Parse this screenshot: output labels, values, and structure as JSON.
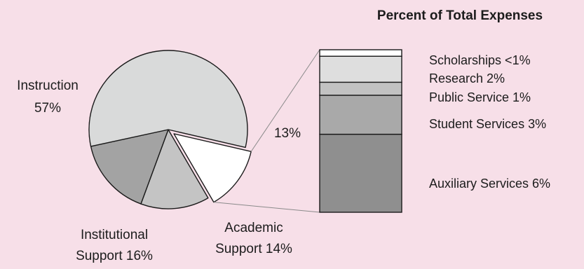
{
  "chart_data": {
    "type": "pie",
    "title": "Percent of Total Expenses",
    "slices": [
      {
        "label_line1": "Instruction",
        "label_line2": "57%",
        "value": 57,
        "color": "#d9dada"
      },
      {
        "label_line1": "Institutional",
        "label_line2": "Support 16%",
        "value": 16,
        "color": "#a3a3a3"
      },
      {
        "label_line1": "Academic",
        "label_line2": "Support 14%",
        "value": 14,
        "color": "#c4c4c4"
      },
      {
        "label_line1": "13%",
        "label_line2": "",
        "value": 13,
        "color": "#ffffff",
        "exploded": true
      }
    ],
    "breakdown": {
      "type": "stacked-bar",
      "segments": [
        {
          "label": "Auxiliary Services 6%",
          "value": 6,
          "color": "#8f8f8f"
        },
        {
          "label": "Student Services 3%",
          "value": 3,
          "color": "#a9a9a9"
        },
        {
          "label": "Public Service 1%",
          "value": 1,
          "color": "#c2c2c2"
        },
        {
          "label": "Research 2%",
          "value": 2,
          "color": "#dedede"
        },
        {
          "label": "Scholarships <1%",
          "value": 0.5,
          "color": "#ffffff"
        }
      ]
    },
    "colors": {
      "background": "#f7dfe8",
      "outline": "#1a1a1a",
      "connector": "#8a8a8a"
    }
  }
}
